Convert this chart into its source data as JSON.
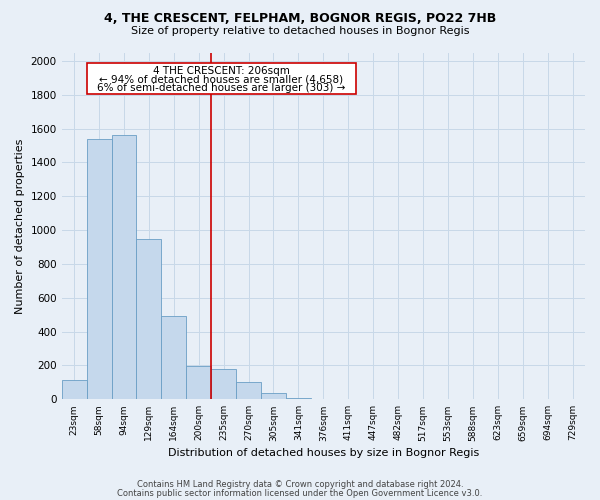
{
  "title": "4, THE CRESCENT, FELPHAM, BOGNOR REGIS, PO22 7HB",
  "subtitle": "Size of property relative to detached houses in Bognor Regis",
  "xlabel": "Distribution of detached houses by size in Bognor Regis",
  "ylabel": "Number of detached properties",
  "bar_labels": [
    "23sqm",
    "58sqm",
    "94sqm",
    "129sqm",
    "164sqm",
    "200sqm",
    "235sqm",
    "270sqm",
    "305sqm",
    "341sqm",
    "376sqm",
    "411sqm",
    "447sqm",
    "482sqm",
    "517sqm",
    "553sqm",
    "588sqm",
    "623sqm",
    "659sqm",
    "694sqm",
    "729sqm"
  ],
  "bar_heights": [
    115,
    1540,
    1560,
    950,
    490,
    195,
    180,
    100,
    40,
    5,
    0,
    0,
    0,
    0,
    0,
    0,
    0,
    0,
    0,
    0,
    0
  ],
  "bar_color": "#c5d8ec",
  "bar_edge_color": "#6a9ec5",
  "vline_x_index": 5,
  "vline_color": "#cc0000",
  "ann_text_line1": "4 THE CRESCENT: 206sqm",
  "ann_text_line2": "← 94% of detached houses are smaller (4,658)",
  "ann_text_line3": "6% of semi-detached houses are larger (303) →",
  "annotation_box_color": "#ffffff",
  "annotation_box_edge_color": "#cc0000",
  "ylim": [
    0,
    2050
  ],
  "yticks": [
    0,
    200,
    400,
    600,
    800,
    1000,
    1200,
    1400,
    1600,
    1800,
    2000
  ],
  "grid_color": "#c8d8e8",
  "background_color": "#e8eff7",
  "footer_line1": "Contains HM Land Registry data © Crown copyright and database right 2024.",
  "footer_line2": "Contains public sector information licensed under the Open Government Licence v3.0."
}
